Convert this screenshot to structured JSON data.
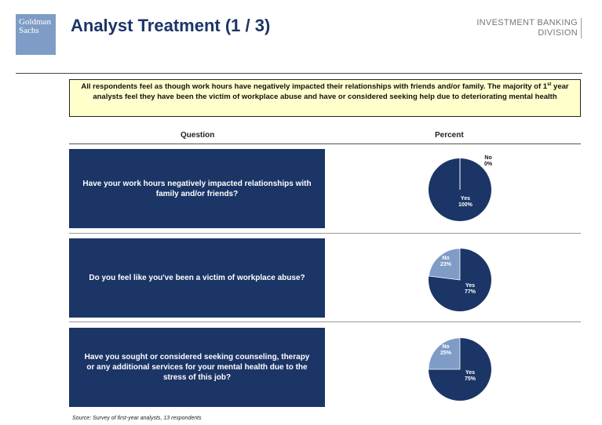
{
  "logo": {
    "line1": "Goldman",
    "line2": "Sachs"
  },
  "title": "Analyst Treatment (1 / 3)",
  "division": {
    "line1": "INVESTMENT BANKING",
    "line2": "DIVISION"
  },
  "callout": {
    "part1": "All respondents feel as though work hours have negatively impacted their relationships with friends and/or family.  The majority of 1",
    "sup": "st",
    "part2": " year analysts feel they have been the victim of workplace abuse and have or considered seeking help due to deteriorating mental health"
  },
  "headers": {
    "question": "Question",
    "percent": "Percent"
  },
  "colors": {
    "navy": "#1b3566",
    "light_blue": "#7e9cc6",
    "callout_bg": "#ffffcc"
  },
  "questions": [
    {
      "text": "Have your work hours negatively impacted relationships with family and/or friends?",
      "yes_label": "Yes",
      "yes_value": "100%",
      "no_label": "No",
      "no_value": "0%"
    },
    {
      "text": "Do you feel like you've been a victim of workplace abuse?",
      "yes_label": "Yes",
      "yes_value": "77%",
      "no_label": "No",
      "no_value": "23%"
    },
    {
      "text": "Have you sought or considered seeking counseling, therapy or any additional services for your mental health due to the stress of this job?",
      "yes_label": "Yes",
      "yes_value": "75%",
      "no_label": "No",
      "no_value": "25%"
    }
  ],
  "chart_data": [
    {
      "type": "pie",
      "categories": [
        "Yes",
        "No"
      ],
      "values": [
        100,
        0
      ]
    },
    {
      "type": "pie",
      "categories": [
        "Yes",
        "No"
      ],
      "values": [
        77,
        23
      ]
    },
    {
      "type": "pie",
      "categories": [
        "Yes",
        "No"
      ],
      "values": [
        75,
        25
      ]
    }
  ],
  "source": "Source: Survey of first-year analysts, 13 respondents"
}
